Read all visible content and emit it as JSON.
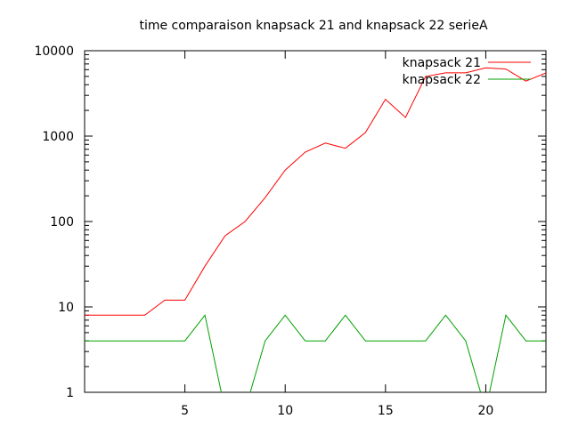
{
  "chart_data": {
    "type": "line",
    "title": "time comparaison knapsack 21 and knapsack 22 serieA",
    "xlabel": "",
    "ylabel": "",
    "xlim": [
      0,
      23
    ],
    "ylim": [
      1,
      10000
    ],
    "yscale": "log",
    "grid": false,
    "legend_position": "top-right",
    "xticks": [
      5,
      10,
      15,
      20
    ],
    "yticks": [
      1,
      10,
      100,
      1000,
      10000
    ],
    "series": [
      {
        "name": "knapsack 21",
        "color": "#ff0000",
        "x": [
          0,
          1,
          2,
          3,
          4,
          5,
          6,
          7,
          8,
          9,
          10,
          11,
          12,
          13,
          14,
          15,
          16,
          17,
          18,
          19,
          20,
          21,
          22,
          23
        ],
        "y": [
          8,
          8,
          8,
          8,
          12,
          12,
          30,
          68,
          100,
          190,
          400,
          650,
          830,
          720,
          1100,
          2700,
          1650,
          5000,
          5500,
          5500,
          6300,
          6100,
          4400,
          5500
        ]
      },
      {
        "name": "knapsack 22",
        "color": "#00a000",
        "x": [
          0,
          1,
          2,
          3,
          4,
          5,
          6,
          7,
          8,
          9,
          10,
          11,
          12,
          13,
          14,
          15,
          16,
          17,
          18,
          19,
          20,
          21,
          22,
          23
        ],
        "y": [
          4,
          4,
          4,
          4,
          4,
          4,
          8,
          0,
          0,
          4,
          8,
          4,
          4,
          8,
          4,
          4,
          4,
          4,
          8,
          4,
          0,
          8,
          4,
          4
        ]
      }
    ]
  }
}
